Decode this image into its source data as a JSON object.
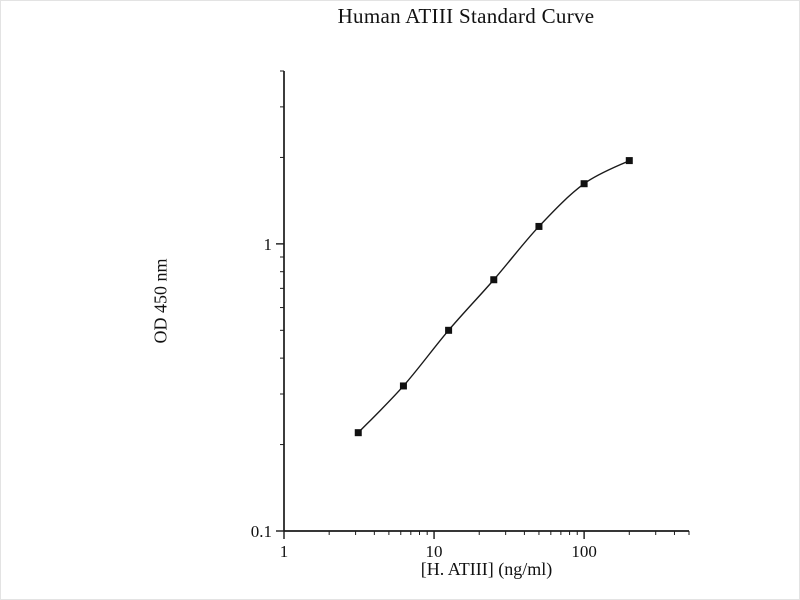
{
  "figure": {
    "background": "#ffffff",
    "axis_color": "#1a1a1a",
    "line_color": "#1a1a1a",
    "marker_color": "#111111"
  },
  "chart_data": {
    "type": "line",
    "title": "Human ATIII Standard Curve",
    "xlabel": "[H. ATIII] (ng/ml)",
    "ylabel": "OD 450 nm",
    "x_scale": "log",
    "y_scale": "log",
    "xlim": [
      1,
      500
    ],
    "ylim": [
      0.1,
      4
    ],
    "grid": false,
    "legend": "none",
    "series": [
      {
        "name": "Human ATIII standard",
        "x": [
          3.125,
          6.25,
          12.5,
          25,
          50,
          100,
          200
        ],
        "y": [
          0.22,
          0.32,
          0.5,
          0.75,
          1.15,
          1.62,
          1.95
        ],
        "marker": "filled-square"
      }
    ],
    "x_major_ticks": [
      {
        "value": 1,
        "label": "1"
      },
      {
        "value": 10,
        "label": "10"
      },
      {
        "value": 100,
        "label": "100"
      }
    ],
    "y_major_ticks": [
      {
        "value": 0.1,
        "label": "0.1"
      },
      {
        "value": 1,
        "label": "1"
      }
    ]
  }
}
